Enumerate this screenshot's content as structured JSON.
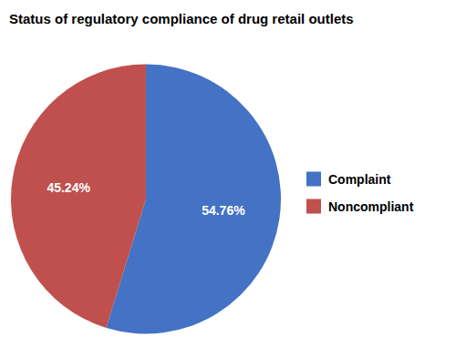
{
  "chart_data": {
    "type": "pie",
    "title": "Status of regulatory compliance of drug retail outlets",
    "categories": [
      "Complaint",
      "Noncompliant"
    ],
    "values": [
      54.76,
      45.24
    ],
    "value_labels": [
      "54.76%",
      "45.24%"
    ],
    "colors": [
      "#4472C4",
      "#C0504D"
    ],
    "data_labels": true,
    "legend": "right"
  }
}
